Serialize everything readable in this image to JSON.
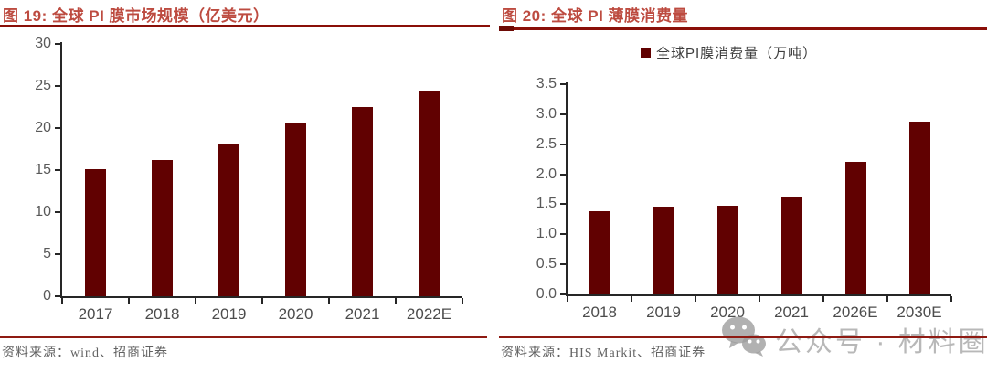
{
  "chart_data": [
    {
      "type": "bar",
      "title": "图 19:  全球 PI 膜市场规模（亿美元）",
      "categories": [
        "2017",
        "2018",
        "2019",
        "2020",
        "2021",
        "2022E"
      ],
      "values": [
        15.1,
        16.2,
        18.0,
        20.5,
        22.5,
        24.5
      ],
      "ylim": [
        0,
        30
      ],
      "ytick_labels": [
        "0",
        "5",
        "10",
        "15",
        "20",
        "25",
        "30"
      ],
      "legend": null,
      "legend_position": null,
      "grid": false,
      "bar_color": "#610101",
      "source": "资料来源：wind、招商证券"
    },
    {
      "type": "bar",
      "title": "图 20:  全球 PI 薄膜消费量",
      "categories": [
        "2018",
        "2019",
        "2020",
        "2021",
        "2026E",
        "2030E"
      ],
      "values": [
        1.39,
        1.46,
        1.48,
        1.63,
        2.21,
        2.87
      ],
      "ylim": [
        0,
        3.5
      ],
      "ytick_labels": [
        "0.0",
        "0.5",
        "1.0",
        "1.5",
        "2.0",
        "2.5",
        "3.0",
        "3.5"
      ],
      "legend": "全球PI膜消费量（万吨）",
      "legend_position": "top",
      "grid": false,
      "bar_color": "#610101",
      "source": "资料来源：HIS Markit、招商证券"
    }
  ],
  "colors": {
    "bar": "#610101",
    "title_text": "#bd4b40",
    "title_underline": "#8a0f08",
    "axis": "#262626",
    "tick_label": "#595959",
    "source_line": "#8e1a12",
    "source_text": "#616161",
    "watermark": "#a4a4a4"
  },
  "watermark": {
    "icon": "wechat-icon",
    "text": "公众号 · 材料圈"
  }
}
